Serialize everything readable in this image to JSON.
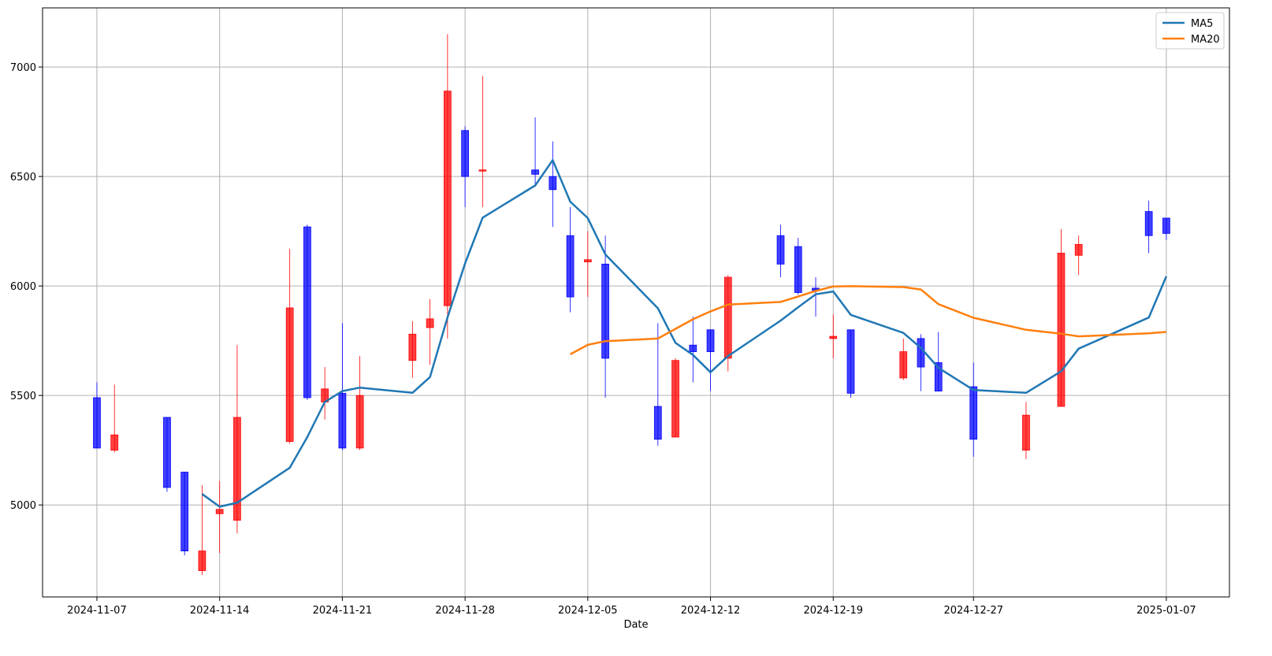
{
  "chart_data": {
    "type": "candlestick",
    "xlabel": "Date",
    "ylabel": "",
    "ylim": [
      4580,
      7270
    ],
    "grid": true,
    "legend_position": "top-right",
    "colors": {
      "up": "#ff0000",
      "down": "#0000ff",
      "ma5": "#1f77b4",
      "ma20": "#ff7f0e"
    },
    "x_ticks": [
      "2024-11-07",
      "2024-11-14",
      "2024-11-21",
      "2024-11-28",
      "2024-12-05",
      "2024-12-12",
      "2024-12-19",
      "2024-12-27",
      "2025-01-07"
    ],
    "y_ticks": [
      5000,
      5500,
      6000,
      6500,
      7000
    ],
    "dates": [
      "2024-11-07",
      "2024-11-08",
      "2024-11-11",
      "2024-11-12",
      "2024-11-13",
      "2024-11-14",
      "2024-11-15",
      "2024-11-18",
      "2024-11-19",
      "2024-11-20",
      "2024-11-21",
      "2024-11-22",
      "2024-11-25",
      "2024-11-26",
      "2024-11-27",
      "2024-11-28",
      "2024-11-29",
      "2024-12-02",
      "2024-12-03",
      "2024-12-04",
      "2024-12-05",
      "2024-12-06",
      "2024-12-09",
      "2024-12-10",
      "2024-12-11",
      "2024-12-12",
      "2024-12-13",
      "2024-12-16",
      "2024-12-17",
      "2024-12-18",
      "2024-12-19",
      "2024-12-20",
      "2024-12-23",
      "2024-12-24",
      "2024-12-25",
      "2024-12-27",
      "2024-12-30",
      "2025-01-01",
      "2025-01-02",
      "2025-01-06",
      "2025-01-07"
    ],
    "open": [
      5490,
      5250,
      5400,
      5150,
      4700,
      4960,
      4930,
      5290,
      6270,
      5470,
      5510,
      5260,
      5660,
      5810,
      5910,
      6710,
      6530,
      6530,
      6500,
      6230,
      6110,
      6100,
      5450,
      5310,
      5730,
      5800,
      5670,
      6230,
      6180,
      5990,
      5760,
      5800,
      5580,
      5760,
      5650,
      5540,
      5250,
      5450,
      6140,
      6340,
      6310
    ],
    "high": [
      5560,
      5550,
      5400,
      5150,
      5090,
      5110,
      5730,
      6170,
      6280,
      5630,
      5830,
      5680,
      5840,
      5940,
      7150,
      6730,
      6960,
      6770,
      6660,
      6360,
      6250,
      6230,
      5830,
      5670,
      5860,
      5800,
      6050,
      6280,
      6220,
      6040,
      5870,
      5800,
      5760,
      5780,
      5790,
      5650,
      5470,
      6260,
      6230,
      6390,
      6310
    ],
    "low": [
      5260,
      5240,
      5060,
      4770,
      4680,
      4780,
      4870,
      5280,
      5480,
      5390,
      5250,
      5250,
      5580,
      5640,
      5760,
      6360,
      6360,
      6460,
      6270,
      5880,
      5950,
      5490,
      5270,
      5310,
      5560,
      5520,
      5610,
      6040,
      5960,
      5860,
      5670,
      5490,
      5570,
      5520,
      5520,
      5220,
      5210,
      5450,
      6050,
      6150,
      6210
    ],
    "close": [
      5260,
      5320,
      5080,
      4790,
      4790,
      4980,
      5400,
      5900,
      5490,
      5530,
      5260,
      5500,
      5780,
      5850,
      6890,
      6500,
      6530,
      6510,
      6440,
      5950,
      6120,
      5670,
      5300,
      5660,
      5700,
      5700,
      6040,
      6100,
      5970,
      5980,
      5770,
      5510,
      5700,
      5630,
      5520,
      5300,
      5410,
      6150,
      6190,
      6230,
      6240
    ],
    "series": [
      {
        "name": "MA5",
        "values": [
          null,
          null,
          null,
          null,
          5050,
          4992,
          5010,
          5170,
          5310,
          5470,
          5520,
          5536,
          5512,
          5584,
          5857,
          6103,
          6312,
          6459,
          6575,
          6385,
          6310,
          6144,
          5898,
          5740,
          5685,
          5606,
          5680,
          5842,
          5903,
          5962,
          5975,
          5868,
          5786,
          5717,
          5626,
          5525,
          5512,
          5610,
          5714,
          5856,
          6044
        ]
      },
      {
        "name": "MA20",
        "values": [
          null,
          null,
          null,
          null,
          null,
          null,
          null,
          null,
          null,
          null,
          null,
          null,
          null,
          null,
          null,
          null,
          null,
          null,
          null,
          5688,
          5731,
          5748,
          5760,
          5804,
          5848,
          5884,
          5915,
          5927,
          5952,
          5977,
          5998,
          5999,
          5995,
          5984,
          5917,
          5855,
          5800,
          5782,
          5770,
          5784,
          5790
        ]
      }
    ]
  }
}
